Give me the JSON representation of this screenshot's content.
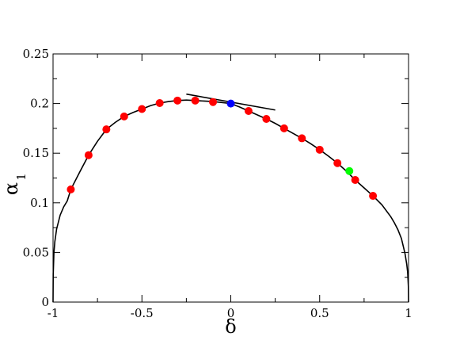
{
  "chart_data": {
    "type": "scatter",
    "xlabel": "δ",
    "ylabel": "α",
    "ylabel_subscript": "1",
    "xlim": [
      -1,
      1
    ],
    "ylim": [
      0,
      0.25
    ],
    "x_ticks": [
      -1,
      -0.5,
      0,
      0.5,
      1
    ],
    "x_tick_labels": [
      "-1",
      "-0.5",
      "0",
      "0.5",
      "1"
    ],
    "y_ticks": [
      0,
      0.05,
      0.1,
      0.15,
      0.2,
      0.25
    ],
    "y_tick_labels": [
      "0",
      "0.05",
      "0.1",
      "0.15",
      "0.2",
      "0.25"
    ],
    "grid": false,
    "series": [
      {
        "kind": "curve",
        "color": "#000000",
        "x": [
          -1,
          -0.999,
          -0.995,
          -0.99,
          -0.98,
          -0.96,
          -0.94,
          -0.92,
          -0.9,
          -0.85,
          -0.8,
          -0.75,
          -0.7,
          -0.65,
          -0.6,
          -0.55,
          -0.5,
          -0.45,
          -0.4,
          -0.35,
          -0.3,
          -0.25,
          -0.2,
          -0.15,
          -0.1,
          -0.05,
          0,
          0.05,
          0.1,
          0.15,
          0.2,
          0.25,
          0.3,
          0.35,
          0.4,
          0.45,
          0.5,
          0.55,
          0.6,
          0.65,
          0.7,
          0.75,
          0.8,
          0.85,
          0.9,
          0.92,
          0.94,
          0.96,
          0.98,
          0.99,
          0.995,
          0.999,
          1
        ],
        "y": [
          0,
          0.0282,
          0.0497,
          0.0608,
          0.0735,
          0.0876,
          0.096,
          0.1019,
          0.1135,
          0.131,
          0.148,
          0.162,
          0.174,
          0.181,
          0.187,
          0.191,
          0.1945,
          0.198,
          0.2005,
          0.202,
          0.203,
          0.2035,
          0.203,
          0.2025,
          0.202,
          0.201,
          0.2,
          0.1965,
          0.1925,
          0.1885,
          0.1845,
          0.18,
          0.175,
          0.17,
          0.165,
          0.1595,
          0.1535,
          0.147,
          0.14,
          0.132,
          0.123,
          0.115,
          0.107,
          0.098,
          0.086,
          0.08,
          0.073,
          0.064,
          0.049,
          0.038,
          0.03,
          0.016,
          0
        ]
      },
      {
        "kind": "tangent-line",
        "color": "#000000",
        "x": [
          -0.25,
          0.25
        ],
        "y": [
          0.2095,
          0.1935
        ]
      },
      {
        "kind": "points",
        "color": "#ff0000",
        "x": [
          -0.9,
          -0.8,
          -0.7,
          -0.6,
          -0.5,
          -0.4,
          -0.3,
          -0.2,
          -0.1,
          0.1,
          0.2,
          0.3,
          0.4,
          0.5,
          0.6,
          0.7,
          0.8
        ],
        "y": [
          0.1135,
          0.148,
          0.174,
          0.187,
          0.1945,
          0.2005,
          0.203,
          0.203,
          0.2015,
          0.1925,
          0.1845,
          0.175,
          0.165,
          0.1535,
          0.14,
          0.123,
          0.107
        ]
      },
      {
        "kind": "points",
        "color": "#0000ff",
        "x": [
          0
        ],
        "y": [
          0.2
        ]
      },
      {
        "kind": "points",
        "color": "#00ff00",
        "x": [
          0.667
        ],
        "y": [
          0.132
        ]
      }
    ]
  }
}
